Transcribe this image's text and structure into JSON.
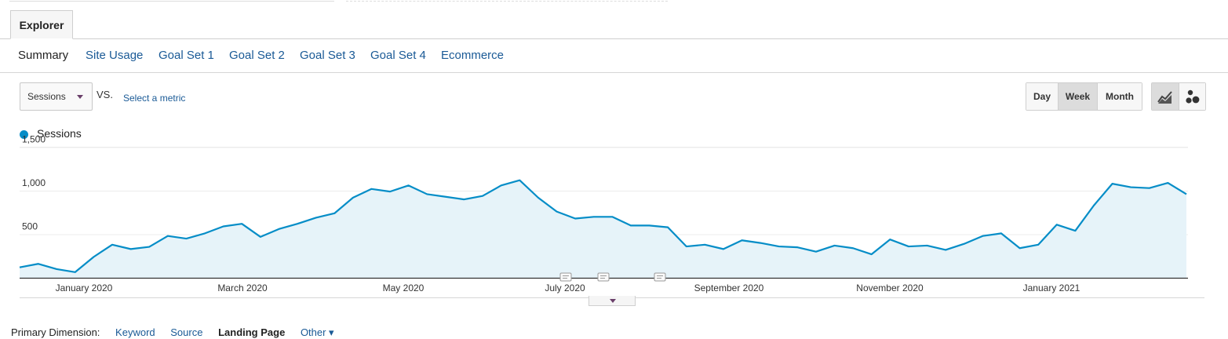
{
  "explorer_tab": {
    "label": "Explorer"
  },
  "subtabs": [
    {
      "label": "Summary",
      "active": true
    },
    {
      "label": "Site Usage"
    },
    {
      "label": "Goal Set 1"
    },
    {
      "label": "Goal Set 2"
    },
    {
      "label": "Goal Set 3"
    },
    {
      "label": "Goal Set 4"
    },
    {
      "label": "Ecommerce"
    }
  ],
  "controls": {
    "metric": "Sessions",
    "vs_label": "VS.",
    "select_metric": "Select a metric",
    "granularity": [
      {
        "label": "Day"
      },
      {
        "label": "Week",
        "active": true
      },
      {
        "label": "Month"
      }
    ],
    "chart_types": [
      {
        "icon": "line-chart-icon",
        "active": true
      },
      {
        "icon": "motion-chart-icon"
      }
    ]
  },
  "legend": {
    "label": "Sessions",
    "color": "#058dc7"
  },
  "chart_data": {
    "type": "area",
    "series": [
      {
        "name": "Sessions",
        "color": "#058dc7",
        "values": [
          120,
          160,
          100,
          65,
          240,
          380,
          330,
          355,
          480,
          450,
          510,
          590,
          620,
          470,
          560,
          620,
          690,
          740,
          920,
          1020,
          990,
          1060,
          960,
          930,
          900,
          940,
          1060,
          1120,
          920,
          760,
          680,
          700,
          700,
          600,
          600,
          580,
          360,
          380,
          330,
          430,
          400,
          360,
          350,
          300,
          370,
          340,
          270,
          440,
          360,
          370,
          320,
          390,
          480,
          510,
          340,
          380,
          610,
          540,
          830,
          1080,
          1040,
          1030,
          1090,
          960
        ]
      }
    ],
    "x_labels": [
      "January 2020",
      "March 2020",
      "May 2020",
      "July 2020",
      "September 2020",
      "November 2020",
      "January 2021"
    ],
    "y_ticks": [
      "1,500",
      "1,000",
      "500"
    ],
    "ylim": [
      0,
      1500
    ],
    "grid": true,
    "annotations": 3
  },
  "primary_dimension": {
    "label": "Primary Dimension:",
    "options": [
      {
        "label": "Keyword",
        "style": "link"
      },
      {
        "label": "Source",
        "style": "link"
      },
      {
        "label": "Landing Page",
        "style": "bold"
      },
      {
        "label": "Other ▾",
        "style": "link"
      }
    ]
  }
}
